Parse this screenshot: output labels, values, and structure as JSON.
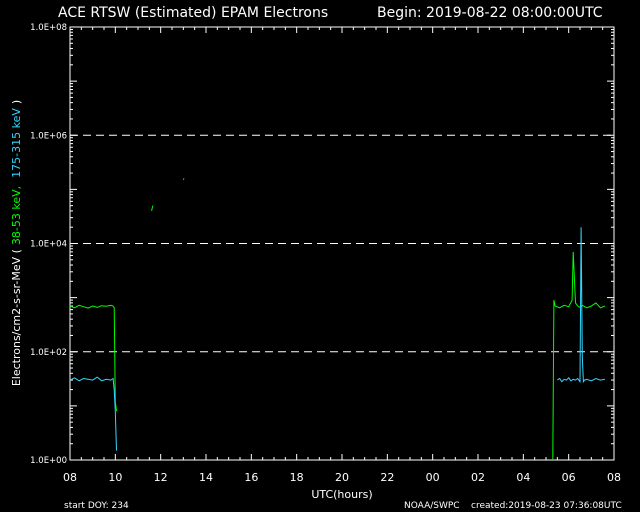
{
  "header": {
    "title": "ACE RTSW (Estimated) EPAM Electrons",
    "begin": "Begin: 2019-08-22 08:00:00UTC"
  },
  "footer": {
    "start_doy": "start DOY:  234",
    "agency": "NOAA/SWPC",
    "created": "created:2019-08-23 07:36:08UTC"
  },
  "colors": {
    "background": "#000000",
    "axes": "#ffffff",
    "low_energy": "#00ff00",
    "high_energy": "#33d6ff"
  },
  "chart_data": {
    "type": "line",
    "xlabel": "UTC(hours)",
    "ylabel": {
      "prefix": "Electrons/cm2-s-sr-MeV  (",
      "series1": "38-53 keV,",
      "series2": "175-315 keV",
      "suffix": ")"
    },
    "x_range_hours": [
      0,
      24
    ],
    "x_tick_labels": [
      "08",
      "10",
      "12",
      "14",
      "16",
      "18",
      "20",
      "22",
      "00",
      "02",
      "04",
      "06",
      "08"
    ],
    "y_scale": "log",
    "y_range": [
      1,
      100000000
    ],
    "y_tick_labels": [
      "1.0E+00",
      "1.0E+02",
      "1.0E+04",
      "1.0E+06",
      "1.0E+08"
    ],
    "dashed_gridlines_y": [
      100,
      10000,
      1000000
    ],
    "series": [
      {
        "name": "38-53 keV",
        "color": "#00ff00",
        "segments": [
          {
            "x": [
              0.0,
              0.2,
              0.4,
              0.6,
              0.8,
              1.0,
              1.2,
              1.4,
              1.6,
              1.8,
              1.9,
              1.95,
              2.0,
              2.05
            ],
            "y": [
              700,
              650,
              720,
              680,
              640,
              700,
              660,
              710,
              690,
              720,
              700,
              650,
              12,
              8
            ]
          },
          {
            "x": [
              3.6,
              3.65
            ],
            "y": [
              40000,
              50000
            ]
          },
          {
            "x": [
              5.0,
              5.03
            ],
            "y": [
              150000,
              160000
            ]
          },
          {
            "x": [
              21.3,
              21.35,
              21.4,
              21.6,
              21.8,
              22.0,
              22.15,
              22.2,
              22.3,
              22.35,
              22.4,
              22.5,
              22.6,
              22.8,
              23.0,
              23.2,
              23.4,
              23.6
            ],
            "y": [
              1,
              900,
              700,
              650,
              720,
              680,
              900,
              7000,
              800,
              750,
              700,
              660,
              720,
              650,
              700,
              800,
              650,
              700
            ]
          }
        ]
      },
      {
        "name": "175-315 keV",
        "color": "#33d6ff",
        "segments": [
          {
            "x": [
              0.0,
              0.2,
              0.4,
              0.6,
              0.8,
              1.0,
              1.2,
              1.4,
              1.6,
              1.8,
              1.9,
              1.95,
              2.0,
              2.05
            ],
            "y": [
              30,
              33,
              29,
              32,
              31,
              30,
              34,
              29,
              31,
              30,
              32,
              20,
              8,
              1.5
            ]
          },
          {
            "x": [
              21.5,
              21.6,
              21.7,
              21.8,
              21.9,
              22.0,
              22.1,
              22.2,
              22.3,
              22.4,
              22.5,
              22.55,
              22.6,
              22.65,
              22.7,
              22.8,
              23.0,
              23.2,
              23.4,
              23.6
            ],
            "y": [
              30,
              32,
              28,
              31,
              30,
              33,
              29,
              31,
              30,
              32,
              28,
              20000,
              80,
              28,
              30,
              31,
              29,
              32,
              30,
              31
            ]
          }
        ]
      }
    ]
  }
}
